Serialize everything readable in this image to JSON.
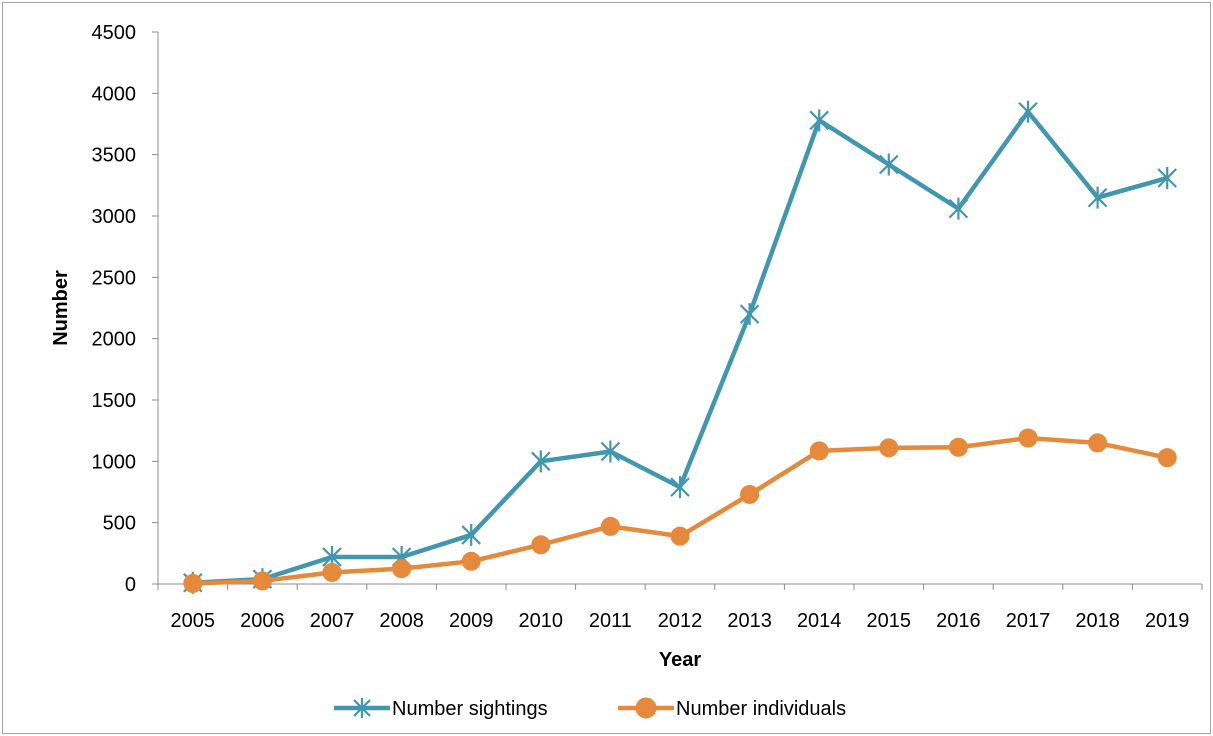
{
  "chart_data": {
    "type": "line",
    "categories": [
      "2005",
      "2006",
      "2007",
      "2008",
      "2009",
      "2010",
      "2011",
      "2012",
      "2013",
      "2014",
      "2015",
      "2016",
      "2017",
      "2018",
      "2019"
    ],
    "series": [
      {
        "name": "Number sightings",
        "color": "#4197b0",
        "marker": "asterisk",
        "values": [
          10,
          40,
          220,
          220,
          400,
          1000,
          1080,
          790,
          2200,
          3780,
          3420,
          3060,
          3850,
          3150,
          3310
        ]
      },
      {
        "name": "Number individuals",
        "color": "#e6893a",
        "marker": "circle",
        "values": [
          5,
          25,
          95,
          125,
          185,
          320,
          470,
          390,
          730,
          1085,
          1110,
          1115,
          1190,
          1150,
          1030
        ]
      }
    ],
    "xlabel": "Year",
    "ylabel": "Number",
    "ylim": [
      0,
      4500
    ],
    "yticks": [
      0,
      500,
      1000,
      1500,
      2000,
      2500,
      3000,
      3500,
      4000,
      4500
    ],
    "grid": false,
    "legend_position": "bottom"
  }
}
